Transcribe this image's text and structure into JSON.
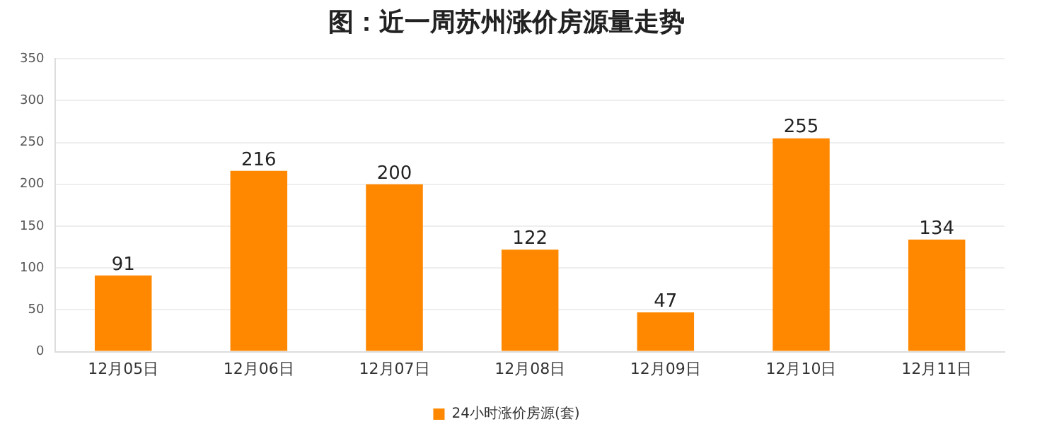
{
  "chart_data": {
    "type": "bar",
    "title": "图：近一周苏州涨价房源量走势",
    "categories": [
      "12月05日",
      "12月06日",
      "12月07日",
      "12月08日",
      "12月09日",
      "12月10日",
      "12月11日"
    ],
    "series": [
      {
        "name": "24小时涨价房源(套)",
        "color": "#ff8800",
        "values": [
          91,
          216,
          200,
          122,
          47,
          255,
          134
        ]
      }
    ],
    "ylim": [
      0,
      350
    ],
    "yticks": [
      0,
      50,
      100,
      150,
      200,
      250,
      300,
      350
    ],
    "grid": "y",
    "legend": "bottom",
    "data_labels": true
  }
}
